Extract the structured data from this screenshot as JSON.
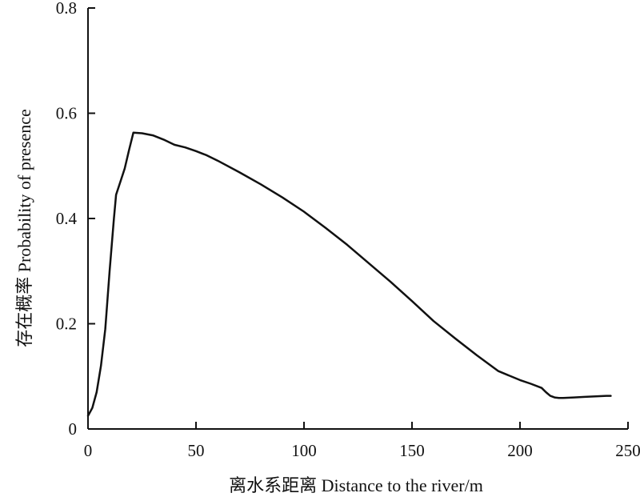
{
  "chart_data": {
    "type": "line",
    "xlabel": "离水系距离 Distance to the river/m",
    "ylabel": "存在概率 Probability of presence",
    "xlim": [
      0,
      250
    ],
    "ylim": [
      0,
      0.8
    ],
    "x_ticks": [
      0,
      50,
      100,
      150,
      200,
      250
    ],
    "y_ticks": [
      0,
      0.2,
      0.4,
      0.6,
      0.8
    ],
    "x_tick_labels": [
      "0",
      "50",
      "100",
      "150",
      "200",
      "250"
    ],
    "y_tick_labels": [
      "0",
      "0.2",
      "0.4",
      "0.6",
      "0.8"
    ],
    "grid": false,
    "series": [
      {
        "x": [
          0,
          2,
          4,
          6,
          8,
          10,
          11,
          12,
          13,
          15,
          17,
          19,
          21,
          25,
          30,
          35,
          40,
          45,
          50,
          55,
          60,
          70,
          80,
          90,
          100,
          110,
          120,
          130,
          140,
          150,
          160,
          170,
          180,
          190,
          200,
          205,
          210,
          212,
          214,
          216,
          218,
          220,
          225,
          230,
          235,
          240,
          242
        ],
        "y": [
          0.025,
          0.04,
          0.07,
          0.12,
          0.19,
          0.3,
          0.35,
          0.4,
          0.445,
          0.47,
          0.495,
          0.53,
          0.563,
          0.562,
          0.558,
          0.55,
          0.54,
          0.535,
          0.528,
          0.52,
          0.51,
          0.488,
          0.465,
          0.44,
          0.413,
          0.382,
          0.35,
          0.315,
          0.28,
          0.243,
          0.205,
          0.172,
          0.14,
          0.11,
          0.093,
          0.086,
          0.078,
          0.07,
          0.063,
          0.06,
          0.059,
          0.059,
          0.06,
          0.061,
          0.062,
          0.063,
          0.063
        ]
      }
    ]
  }
}
